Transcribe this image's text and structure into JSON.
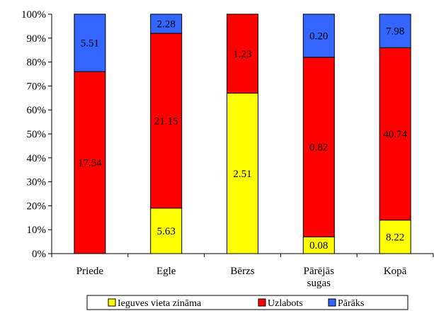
{
  "chart_data": {
    "type": "bar",
    "stacked": "percent",
    "categories": [
      "Priede",
      "Egle",
      "Bērzs",
      "Pārējās sugas",
      "Kopā"
    ],
    "category_lines": [
      [
        "Priede"
      ],
      [
        "Egle"
      ],
      [
        "Bērzs"
      ],
      [
        "Pārējās",
        "sugas"
      ],
      [
        "Kopā"
      ]
    ],
    "ylim": [
      0,
      100
    ],
    "yticks": [
      "0%",
      "10%",
      "20%",
      "30%",
      "40%",
      "50%",
      "60%",
      "70%",
      "80%",
      "90%",
      "100%"
    ],
    "legend_position": "bottom",
    "grid": false,
    "series": [
      {
        "name": "Ieguves vieta zināma",
        "color": "#ffff00",
        "share_percent": [
          0,
          19,
          67,
          7,
          14
        ],
        "labels": [
          "",
          "5.63",
          "2.51",
          "0.08",
          "8.22"
        ]
      },
      {
        "name": "Uzlabots",
        "color": "#ff0000",
        "share_percent": [
          76,
          73,
          33,
          75,
          72
        ],
        "labels": [
          "17.54",
          "21.15",
          "1.23",
          "0.82",
          "40.74"
        ]
      },
      {
        "name": "Pārāks",
        "color": "#3366ff",
        "share_percent": [
          24,
          8,
          0,
          18,
          14
        ],
        "labels": [
          "5.51",
          "2.28",
          "",
          "0.20",
          "7.98"
        ]
      }
    ]
  }
}
